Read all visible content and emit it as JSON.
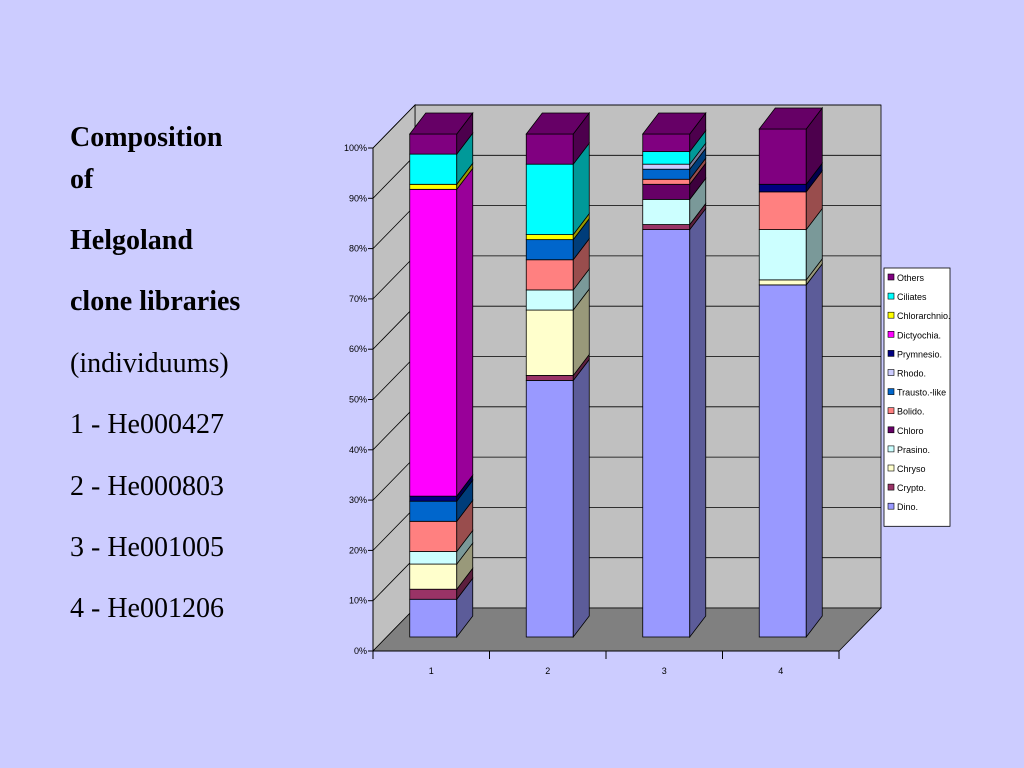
{
  "slide": {
    "title_lines": [
      "Composition",
      "of",
      "Helgoland",
      "clone libraries"
    ],
    "subtitle": "(individuums)",
    "libraries": [
      "1 - He000427",
      "2 - He000803",
      "3 - He001005",
      "4 - He001206"
    ]
  },
  "chart_data": {
    "type": "bar",
    "stacked": true,
    "three_d": true,
    "categories": [
      "1",
      "2",
      "3",
      "4"
    ],
    "yticks": [
      "0%",
      "10%",
      "20%",
      "30%",
      "40%",
      "50%",
      "60%",
      "70%",
      "80%",
      "90%",
      "100%"
    ],
    "ylim": [
      0,
      100
    ],
    "grid": true,
    "legend_position": "right",
    "series": [
      {
        "name": "Dino.",
        "color": "#9999ff",
        "values": [
          7.5,
          51,
          81,
          70
        ]
      },
      {
        "name": "Crypto.",
        "color": "#993366",
        "values": [
          2,
          1,
          1,
          0
        ]
      },
      {
        "name": "Chryso",
        "color": "#ffffcc",
        "values": [
          5,
          13,
          0,
          1
        ]
      },
      {
        "name": "Prasino.",
        "color": "#ccffff",
        "values": [
          2.5,
          4,
          5,
          10
        ]
      },
      {
        "name": "Chloro",
        "color": "#660066",
        "values": [
          0,
          0,
          3,
          0
        ]
      },
      {
        "name": "Bolido.",
        "color": "#ff8080",
        "values": [
          6,
          6,
          1,
          7.5
        ]
      },
      {
        "name": "Trausto.-like",
        "color": "#0066cc",
        "values": [
          4,
          4,
          2,
          0
        ]
      },
      {
        "name": "Rhodo.",
        "color": "#ccccff",
        "values": [
          0,
          0,
          1,
          0
        ]
      },
      {
        "name": "Prymnesio.",
        "color": "#000080",
        "values": [
          1,
          0,
          0,
          1.5
        ]
      },
      {
        "name": "Dictyochia.",
        "color": "#ff00ff",
        "values": [
          61,
          0,
          0,
          0
        ]
      },
      {
        "name": "Chlorarchnio.",
        "color": "#ffff00",
        "values": [
          1,
          1,
          0,
          0
        ]
      },
      {
        "name": "Ciliates",
        "color": "#00ffff",
        "values": [
          6,
          14,
          2.5,
          0
        ]
      },
      {
        "name": "Others",
        "color": "#800080",
        "values": [
          4,
          6,
          3.5,
          11
        ]
      }
    ]
  }
}
